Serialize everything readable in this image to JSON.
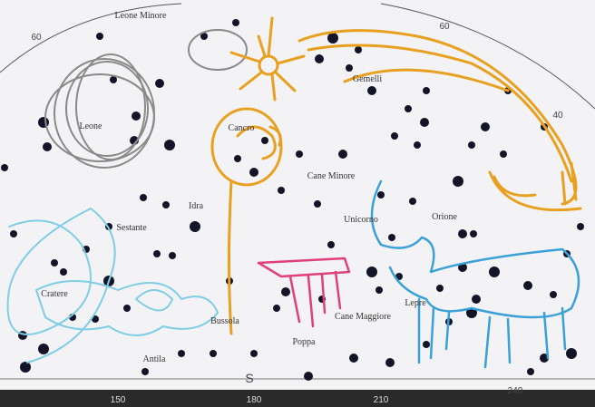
{
  "labels": {
    "leone_minore": "Leone Minore",
    "leone": "Leone",
    "cancro": "Cancro",
    "gemelli": "Gemelli",
    "cane_minore": "Cane Minore",
    "idra": "Idra",
    "sestante": "Sestante",
    "unicorno": "Unicorno",
    "orione": "Orione",
    "cratere": "Cratere",
    "bussola": "Bussola",
    "poppa": "Poppa",
    "cane_maggiore": "Cane Maggiore",
    "lepre": "Lepre",
    "antila": "Antila"
  },
  "scale": {
    "top_left": "60",
    "top_right": "60",
    "right": "40",
    "bottom": [
      "150",
      "180",
      "210",
      "240"
    ],
    "south": "S"
  }
}
